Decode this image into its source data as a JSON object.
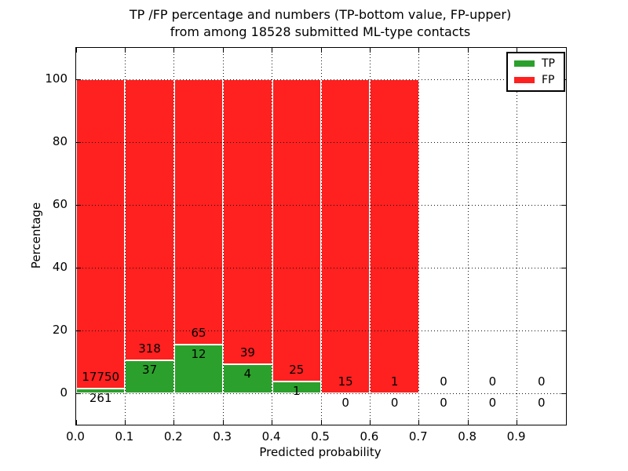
{
  "figure": {
    "title_line1": "TP /FP percentage and numbers (TP-bottom value, FP-upper)",
    "title_line2": "from among 18528 submitted ML-type contacts"
  },
  "chart_data": {
    "type": "bar",
    "subtype": "percentage-stacked-histogram",
    "title": "TP /FP percentage and numbers (TP-bottom value, FP-upper) from among 18528 submitted ML-type contacts",
    "xlabel": "Predicted probability",
    "ylabel": "Percentage",
    "xlim": [
      0.0,
      1.0
    ],
    "ylim": [
      -10,
      110
    ],
    "grid": "dotted both axes, drawn over bars",
    "legend_position": "upper right",
    "x_tick_values": [
      0.0,
      0.1,
      0.2,
      0.3,
      0.4,
      0.5,
      0.6,
      0.7,
      0.8,
      0.9
    ],
    "x_tick_labels": [
      "0.0",
      "0.1",
      "0.2",
      "0.3",
      "0.4",
      "0.5",
      "0.6",
      "0.7",
      "0.8",
      "0.9"
    ],
    "y_tick_values": [
      0,
      20,
      40,
      60,
      80,
      100
    ],
    "y_tick_labels": [
      "0",
      "20",
      "40",
      "60",
      "80",
      "100"
    ],
    "categories": [
      "0.0-0.1",
      "0.1-0.2",
      "0.2-0.3",
      "0.3-0.4",
      "0.4-0.5",
      "0.5-0.6",
      "0.6-0.7",
      "0.7-0.8",
      "0.8-0.9",
      "0.9-1.0"
    ],
    "series": [
      {
        "name": "TP",
        "color": "#2CA02C",
        "counts": [
          261,
          37,
          12,
          4,
          1,
          0,
          0,
          0,
          0,
          0
        ]
      },
      {
        "name": "FP",
        "color": "#FF2020",
        "counts": [
          17750,
          318,
          65,
          39,
          25,
          15,
          1,
          0,
          0,
          0
        ]
      }
    ],
    "tp_percent": [
      1.449,
      10.423,
      15.584,
      9.302,
      3.846,
      0,
      0,
      null,
      null,
      null
    ],
    "bar_total_percent": 100,
    "bar_edge_color": "#ffffff"
  }
}
